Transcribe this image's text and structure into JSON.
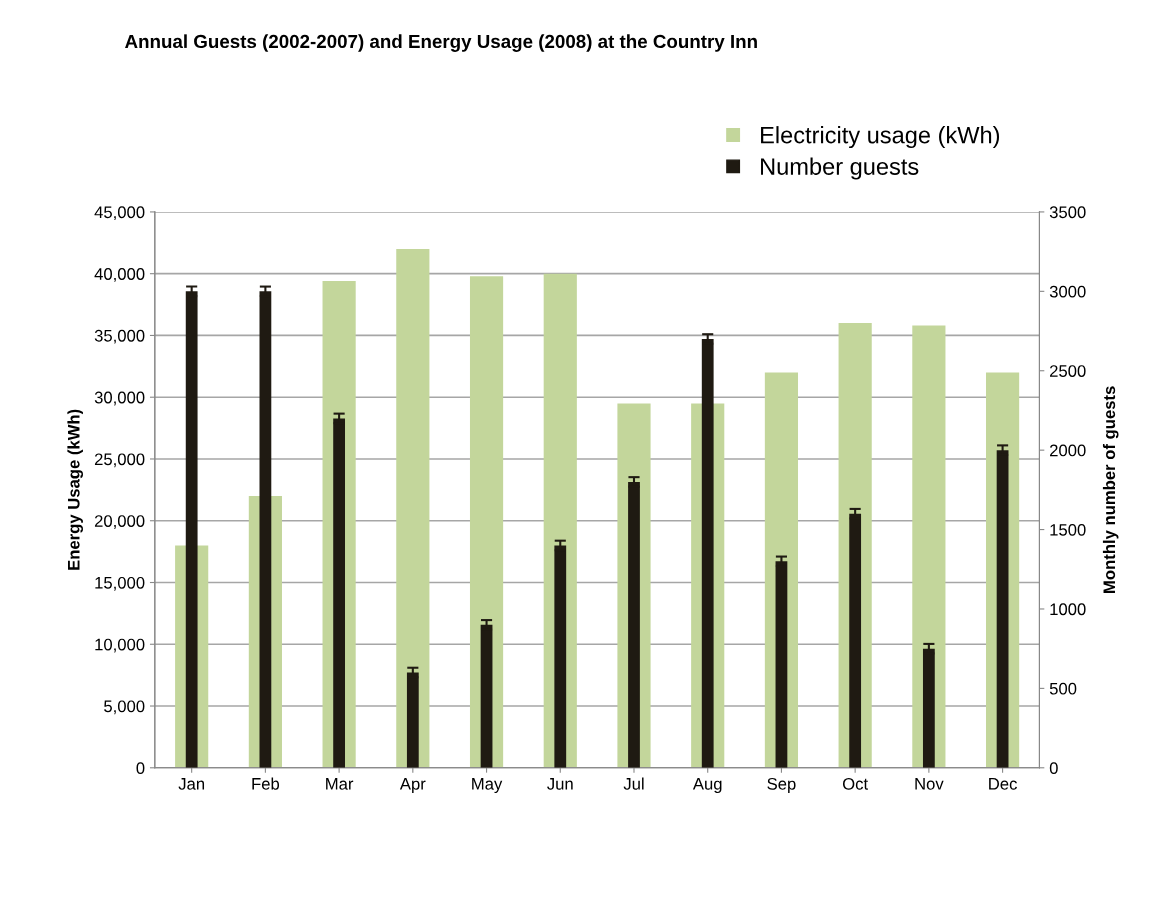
{
  "chart_data": {
    "type": "bar",
    "title": "Annual Guests (2002-2007) and Energy Usage (2008) at the Country Inn",
    "categories": [
      "Jan",
      "Feb",
      "Mar",
      "Apr",
      "May",
      "Jun",
      "Jul",
      "Aug",
      "Sep",
      "Oct",
      "Nov",
      "Dec"
    ],
    "series": [
      {
        "name": "Electricity usage (kWh)",
        "color": "#c3d69b",
        "values": [
          18000,
          22000,
          39400,
          42000,
          39800,
          40000,
          29500,
          29500,
          32000,
          36000,
          35800,
          32000
        ]
      },
      {
        "name": "Number guests",
        "color": "#1f1a12",
        "axis": "y2",
        "values": [
          3000,
          3000,
          2200,
          600,
          900,
          1400,
          1800,
          2700,
          1300,
          1600,
          750,
          2000
        ],
        "errors": [
          30,
          30,
          30,
          30,
          30,
          30,
          30,
          30,
          30,
          30,
          30,
          30
        ]
      }
    ],
    "ylabel": "Energy Usage (kWh)",
    "y2label": "Monthly number of guests",
    "ylim": [
      0,
      45000
    ],
    "yticks": [
      {
        "value": 0,
        "label": "0"
      },
      {
        "value": 5000,
        "label": "5,000"
      },
      {
        "value": 10000,
        "label": "10,000"
      },
      {
        "value": 15000,
        "label": "15,000"
      },
      {
        "value": 20000,
        "label": "20,000"
      },
      {
        "value": 25000,
        "label": "25,000"
      },
      {
        "value": 30000,
        "label": "30,000"
      },
      {
        "value": 35000,
        "label": "35,000"
      },
      {
        "value": 40000,
        "label": "40,000"
      },
      {
        "value": 45000,
        "label": "45,000"
      }
    ],
    "y2lim": [
      0,
      3500
    ],
    "y2ticks": [
      0,
      500,
      1000,
      1500,
      2000,
      2500,
      3000,
      3500
    ],
    "grid": "y",
    "legend": "top right"
  }
}
